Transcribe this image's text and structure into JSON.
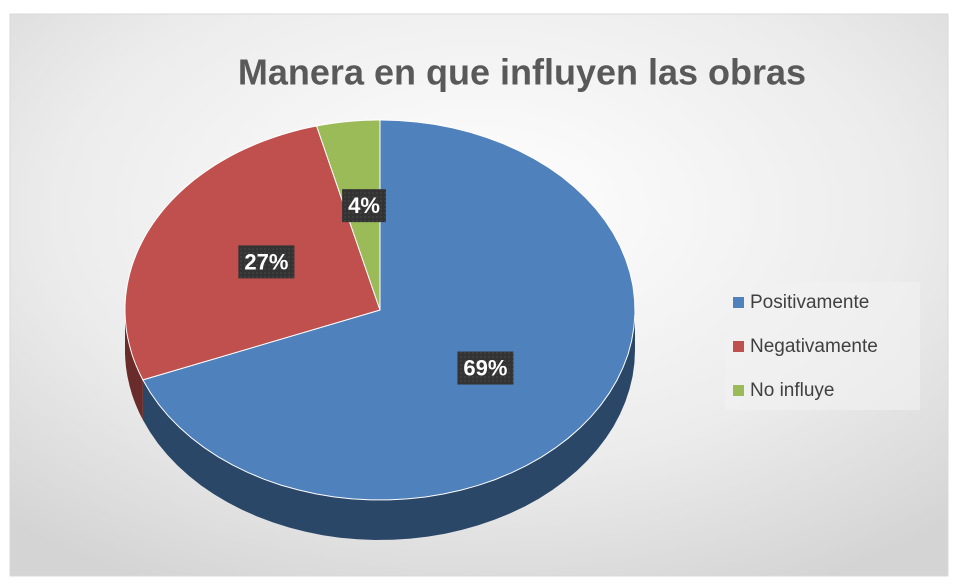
{
  "chart_data": {
    "type": "pie3d",
    "title": "Manera en que influyen las obras",
    "categories": [
      "Positivamente",
      "Negativamente",
      "No influye"
    ],
    "values": [
      69,
      27,
      4
    ],
    "value_labels": [
      "69%",
      "27%",
      "4%"
    ],
    "colors": [
      "#4f81bd",
      "#c0504d",
      "#9bbb59"
    ],
    "legend": "right"
  }
}
